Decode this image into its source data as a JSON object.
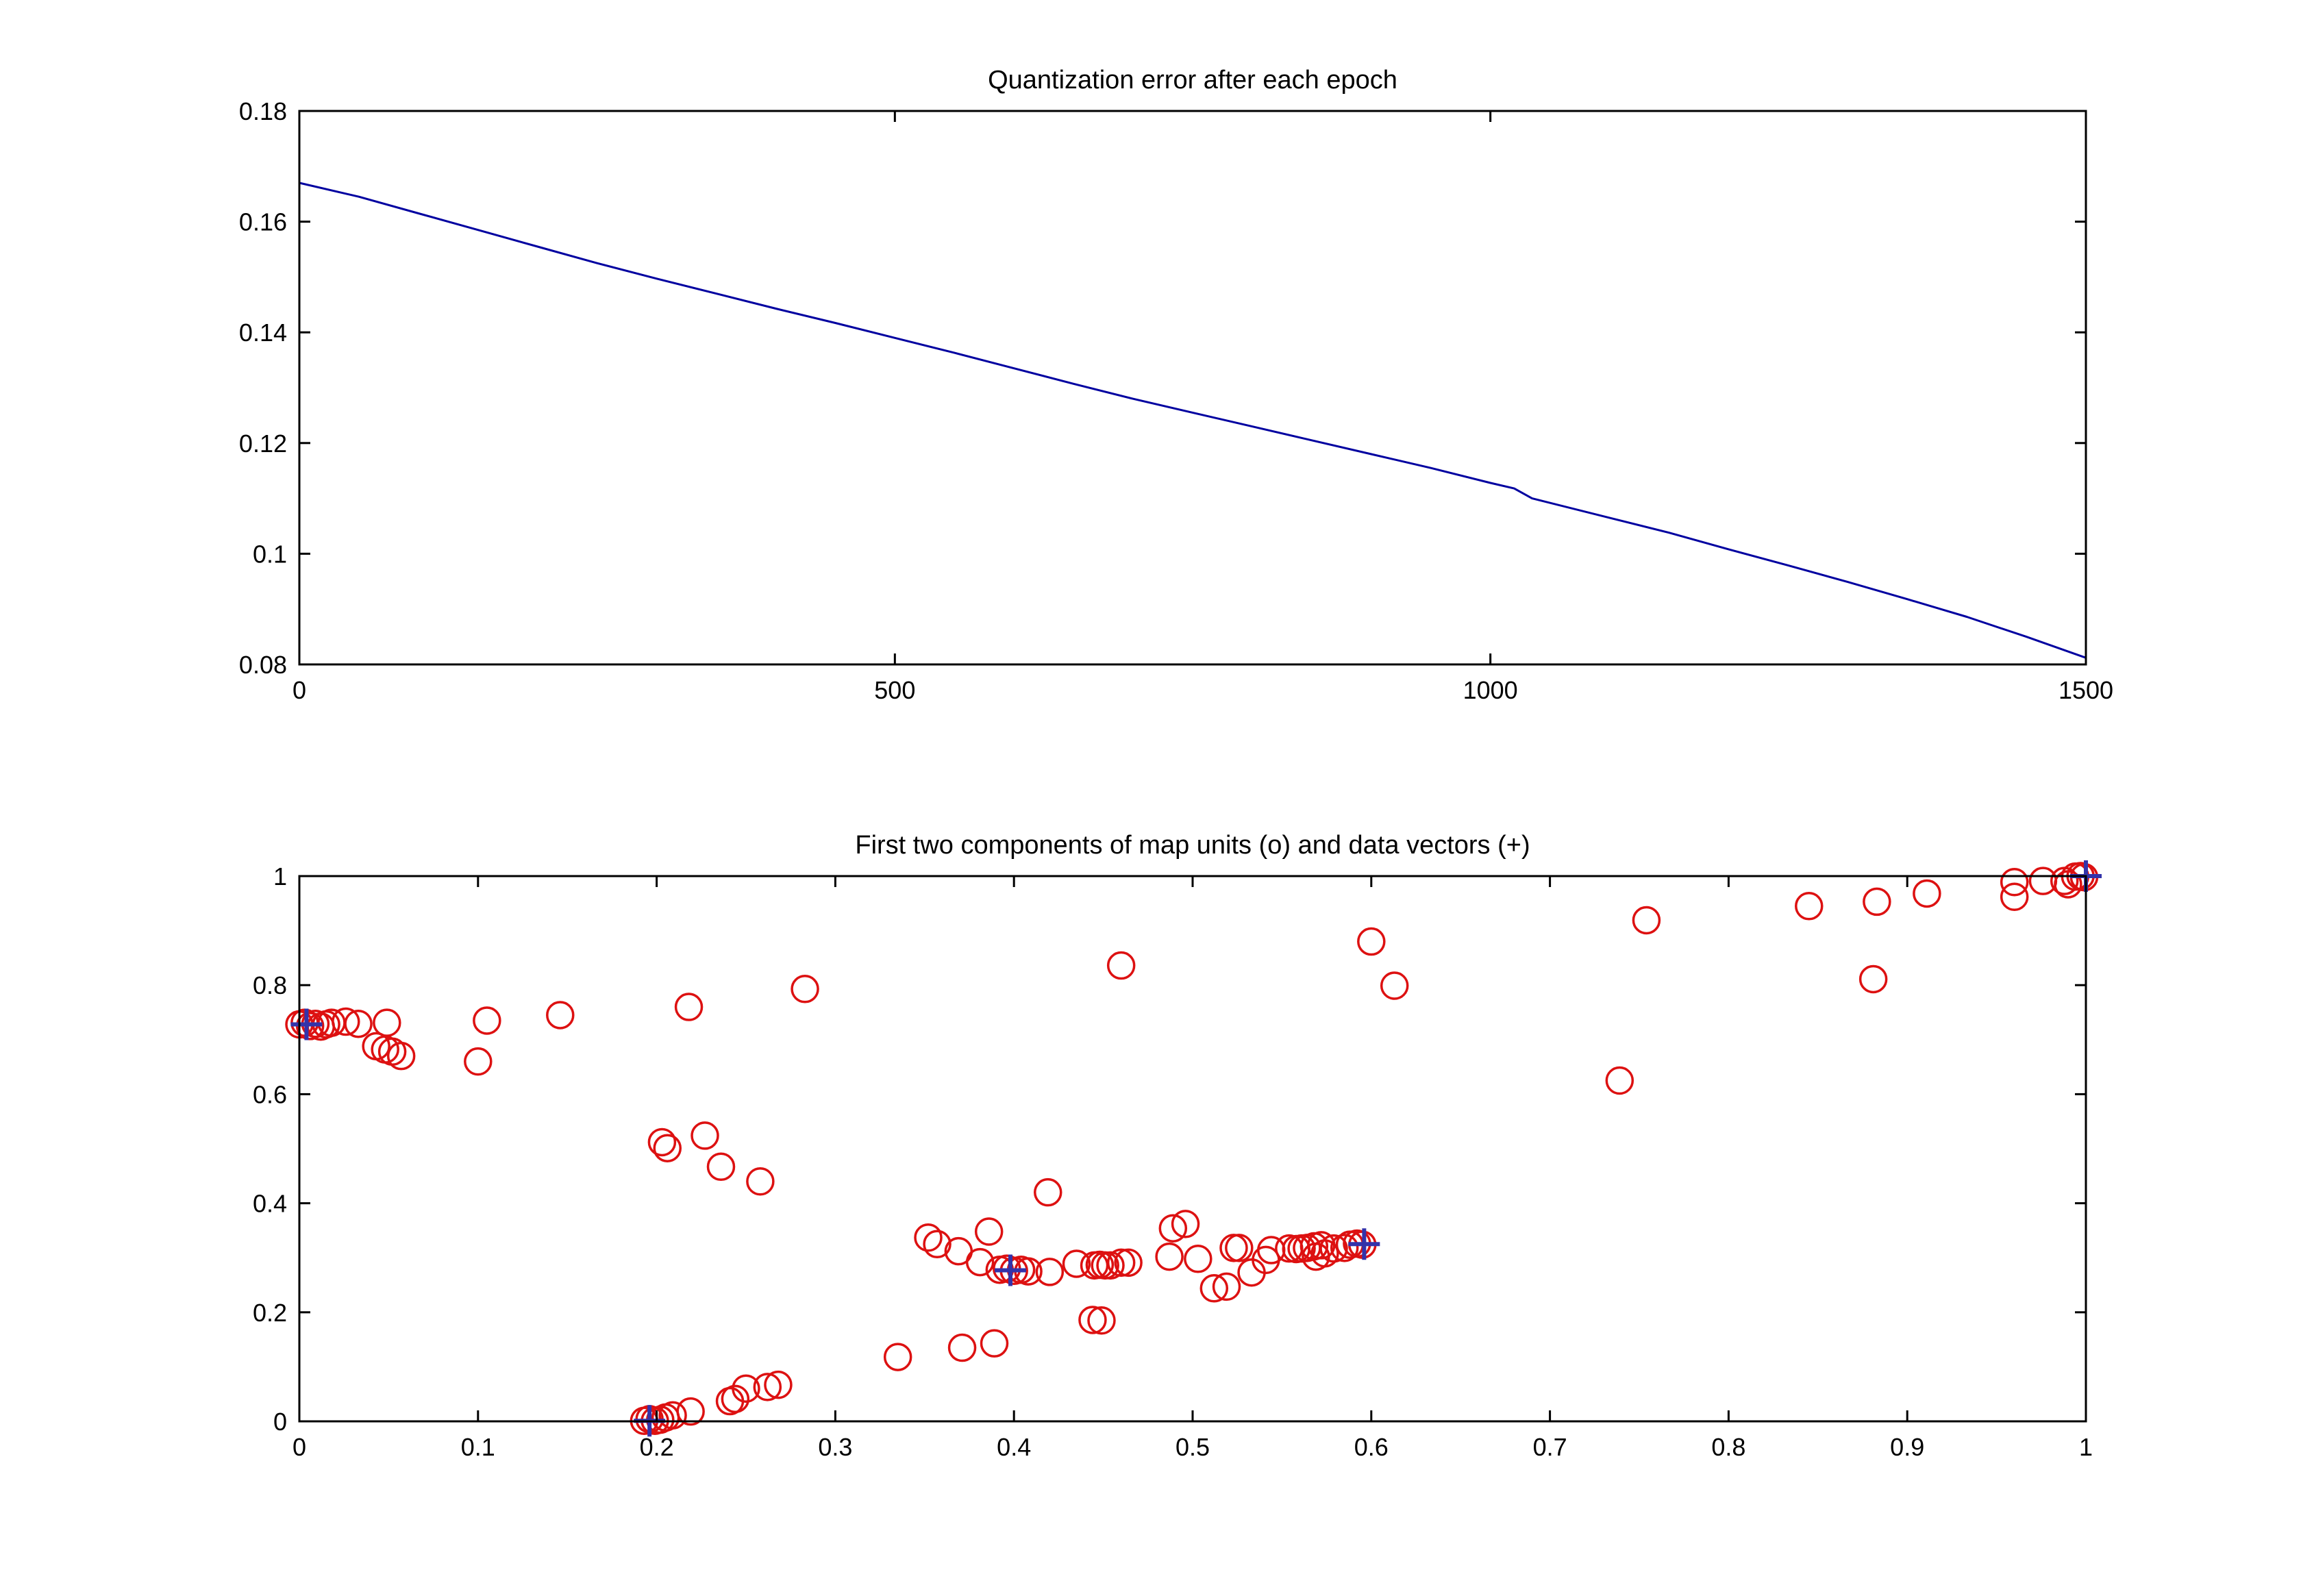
{
  "figure": {
    "background": "#ffffff",
    "axis_color": "#000000",
    "tick_label_font_px": 36
  },
  "chart_data": [
    {
      "type": "line",
      "title": "Quantization error after each epoch",
      "xlabel": "",
      "ylabel": "",
      "xlim": [
        0,
        1500
      ],
      "ylim": [
        0.08,
        0.18
      ],
      "x_ticks": [
        0,
        500,
        1000,
        1500
      ],
      "x_tick_labels": [
        "0",
        "500",
        "1000",
        "1500"
      ],
      "y_ticks": [
        0.08,
        0.1,
        0.12,
        0.14,
        0.16,
        0.18
      ],
      "y_tick_labels": [
        "0.08",
        "0.1",
        "0.12",
        "0.14",
        "0.16",
        "0.18"
      ],
      "grid": false,
      "legend": null,
      "series": [
        {
          "name": "quantization error",
          "color": "#0000a0",
          "width": 3,
          "points": [
            [
              0,
              0.167
            ],
            [
              50,
              0.1645
            ],
            [
              100,
              0.1615
            ],
            [
              150,
              0.1585
            ],
            [
              200,
              0.1555
            ],
            [
              250,
              0.1525
            ],
            [
              300,
              0.1497
            ],
            [
              350,
              0.147
            ],
            [
              400,
              0.1443
            ],
            [
              450,
              0.1417
            ],
            [
              500,
              0.139
            ],
            [
              550,
              0.1363
            ],
            [
              600,
              0.1335
            ],
            [
              650,
              0.1307
            ],
            [
              700,
              0.128
            ],
            [
              750,
              0.1255
            ],
            [
              800,
              0.123
            ],
            [
              850,
              0.1205
            ],
            [
              900,
              0.118
            ],
            [
              950,
              0.1155
            ],
            [
              1000,
              0.1128
            ],
            [
              1020,
              0.1118
            ],
            [
              1035,
              0.11
            ],
            [
              1100,
              0.1065
            ],
            [
              1150,
              0.1038
            ],
            [
              1200,
              0.1008
            ],
            [
              1250,
              0.0979
            ],
            [
              1300,
              0.0949
            ],
            [
              1350,
              0.0918
            ],
            [
              1400,
              0.0886
            ],
            [
              1450,
              0.085
            ],
            [
              1500,
              0.0812
            ]
          ]
        }
      ]
    },
    {
      "type": "scatter",
      "title": "First two components of map units (o) and data vectors (+)",
      "xlabel": "",
      "ylabel": "",
      "xlim": [
        0,
        1
      ],
      "ylim": [
        0,
        1
      ],
      "x_ticks": [
        0,
        0.1,
        0.2,
        0.3,
        0.4,
        0.5,
        0.6,
        0.7,
        0.8,
        0.9,
        1
      ],
      "x_tick_labels": [
        "0",
        "0.1",
        "0.2",
        "0.3",
        "0.4",
        "0.5",
        "0.6",
        "0.7",
        "0.8",
        "0.9",
        "1"
      ],
      "y_ticks": [
        0,
        0.2,
        0.4,
        0.6,
        0.8,
        1
      ],
      "y_tick_labels": [
        "0",
        "0.2",
        "0.4",
        "0.6",
        "0.8",
        "1"
      ],
      "grid": false,
      "legend": null,
      "series": [
        {
          "name": "map units (o)",
          "marker": "circle",
          "color": "#dd1111",
          "marker_radius": 19,
          "stroke_width": 3.5,
          "points": [
            [
              0.0,
              0.728
            ],
            [
              0.003,
              0.731
            ],
            [
              0.006,
              0.725
            ],
            [
              0.009,
              0.729
            ],
            [
              0.012,
              0.724
            ],
            [
              0.015,
              0.728
            ],
            [
              0.018,
              0.731
            ],
            [
              0.026,
              0.733
            ],
            [
              0.033,
              0.729
            ],
            [
              0.049,
              0.731
            ],
            [
              0.043,
              0.688
            ],
            [
              0.048,
              0.682
            ],
            [
              0.052,
              0.678
            ],
            [
              0.057,
              0.67
            ],
            [
              0.1,
              0.66
            ],
            [
              0.105,
              0.735
            ],
            [
              0.146,
              0.745
            ],
            [
              0.218,
              0.76
            ],
            [
              0.283,
              0.793
            ],
            [
              0.203,
              0.512
            ],
            [
              0.206,
              0.501
            ],
            [
              0.227,
              0.524
            ],
            [
              0.236,
              0.467
            ],
            [
              0.258,
              0.44
            ],
            [
              0.419,
              0.42
            ],
            [
              0.352,
              0.337
            ],
            [
              0.357,
              0.325
            ],
            [
              0.369,
              0.312
            ],
            [
              0.386,
              0.348
            ],
            [
              0.381,
              0.292
            ],
            [
              0.392,
              0.278
            ],
            [
              0.396,
              0.28
            ],
            [
              0.4,
              0.276
            ],
            [
              0.404,
              0.278
            ],
            [
              0.408,
              0.275
            ],
            [
              0.42,
              0.274
            ],
            [
              0.435,
              0.289
            ],
            [
              0.445,
              0.286
            ],
            [
              0.448,
              0.287
            ],
            [
              0.451,
              0.286
            ],
            [
              0.454,
              0.286
            ],
            [
              0.46,
              0.291
            ],
            [
              0.464,
              0.291
            ],
            [
              0.487,
              0.302
            ],
            [
              0.489,
              0.354
            ],
            [
              0.496,
              0.362
            ],
            [
              0.503,
              0.298
            ],
            [
              0.512,
              0.244
            ],
            [
              0.519,
              0.247
            ],
            [
              0.523,
              0.318
            ],
            [
              0.526,
              0.318
            ],
            [
              0.533,
              0.273
            ],
            [
              0.541,
              0.296
            ],
            [
              0.544,
              0.314
            ],
            [
              0.554,
              0.317
            ],
            [
              0.558,
              0.316
            ],
            [
              0.561,
              0.317
            ],
            [
              0.564,
              0.318
            ],
            [
              0.568,
              0.321
            ],
            [
              0.572,
              0.323
            ],
            [
              0.569,
              0.302
            ],
            [
              0.574,
              0.308
            ],
            [
              0.579,
              0.317
            ],
            [
              0.585,
              0.318
            ],
            [
              0.588,
              0.324
            ],
            [
              0.592,
              0.326
            ],
            [
              0.595,
              0.324
            ],
            [
              0.46,
              0.836
            ],
            [
              0.6,
              0.88
            ],
            [
              0.613,
              0.799
            ],
            [
              0.739,
              0.625
            ],
            [
              0.754,
              0.919
            ],
            [
              0.845,
              0.945
            ],
            [
              0.883,
              0.953
            ],
            [
              0.911,
              0.968
            ],
            [
              0.881,
              0.811
            ],
            [
              0.96,
              0.989
            ],
            [
              0.96,
              0.962
            ],
            [
              0.976,
              0.991
            ],
            [
              0.988,
              0.991
            ],
            [
              0.99,
              0.985
            ],
            [
              0.994,
              0.999
            ],
            [
              0.997,
              1.0
            ],
            [
              0.999,
              0.998
            ],
            [
              0.193,
              0.001
            ],
            [
              0.196,
              0.004
            ],
            [
              0.199,
              0.001
            ],
            [
              0.202,
              0.003
            ],
            [
              0.205,
              0.007
            ],
            [
              0.209,
              0.011
            ],
            [
              0.219,
              0.018
            ],
            [
              0.241,
              0.037
            ],
            [
              0.244,
              0.041
            ],
            [
              0.25,
              0.06
            ],
            [
              0.262,
              0.063
            ],
            [
              0.268,
              0.067
            ],
            [
              0.335,
              0.118
            ],
            [
              0.371,
              0.135
            ],
            [
              0.389,
              0.143
            ],
            [
              0.444,
              0.186
            ],
            [
              0.449,
              0.185
            ]
          ]
        },
        {
          "name": "data vectors (+)",
          "marker": "plus",
          "color": "#3333aa",
          "marker_halfarm": 23,
          "stroke_width": 6,
          "points": [
            [
              0.004,
              0.728
            ],
            [
              0.196,
              0.001
            ],
            [
              0.398,
              0.277
            ],
            [
              0.596,
              0.325
            ],
            [
              1.0,
              1.0
            ]
          ]
        }
      ]
    }
  ]
}
